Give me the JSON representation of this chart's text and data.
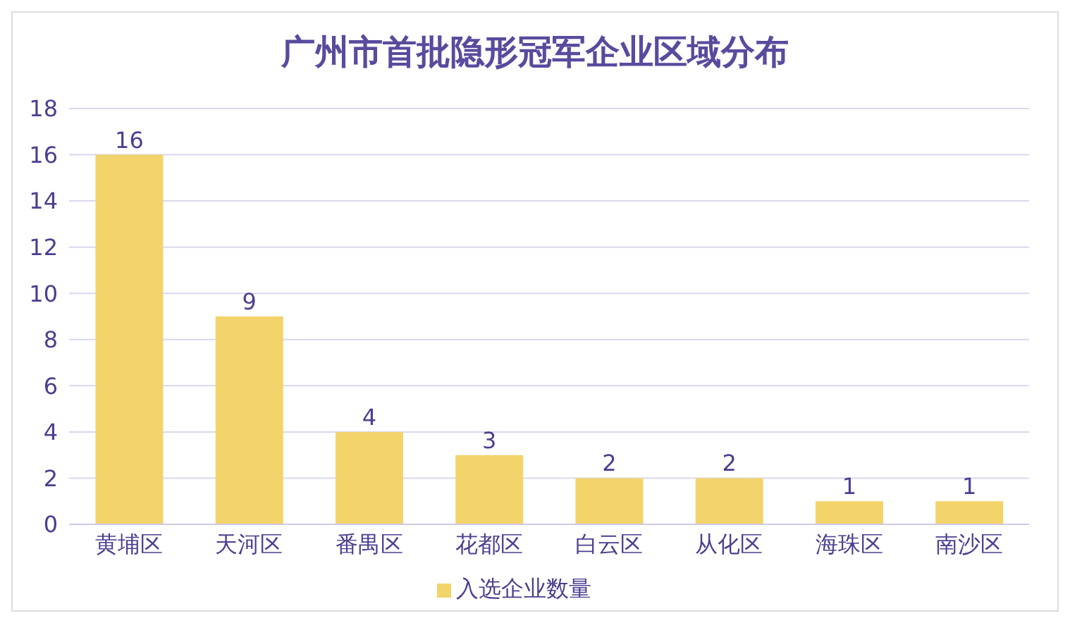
{
  "chart_data": {
    "type": "bar",
    "title": "广州市首批隐形冠军企业区域分布",
    "categories": [
      "黄埔区",
      "天河区",
      "番禺区",
      "花都区",
      "白云区",
      "从化区",
      "海珠区",
      "南沙区"
    ],
    "series": [
      {
        "name": "入选企业数量",
        "color": "#f2d46b",
        "values": [
          16,
          9,
          4,
          3,
          2,
          2,
          1,
          1
        ]
      }
    ],
    "ylim": [
      0,
      18
    ],
    "yticks": [
      0,
      2,
      4,
      6,
      8,
      10,
      12,
      14,
      16,
      18
    ],
    "grid": "y",
    "legend": "bottom",
    "data_labels": true
  }
}
